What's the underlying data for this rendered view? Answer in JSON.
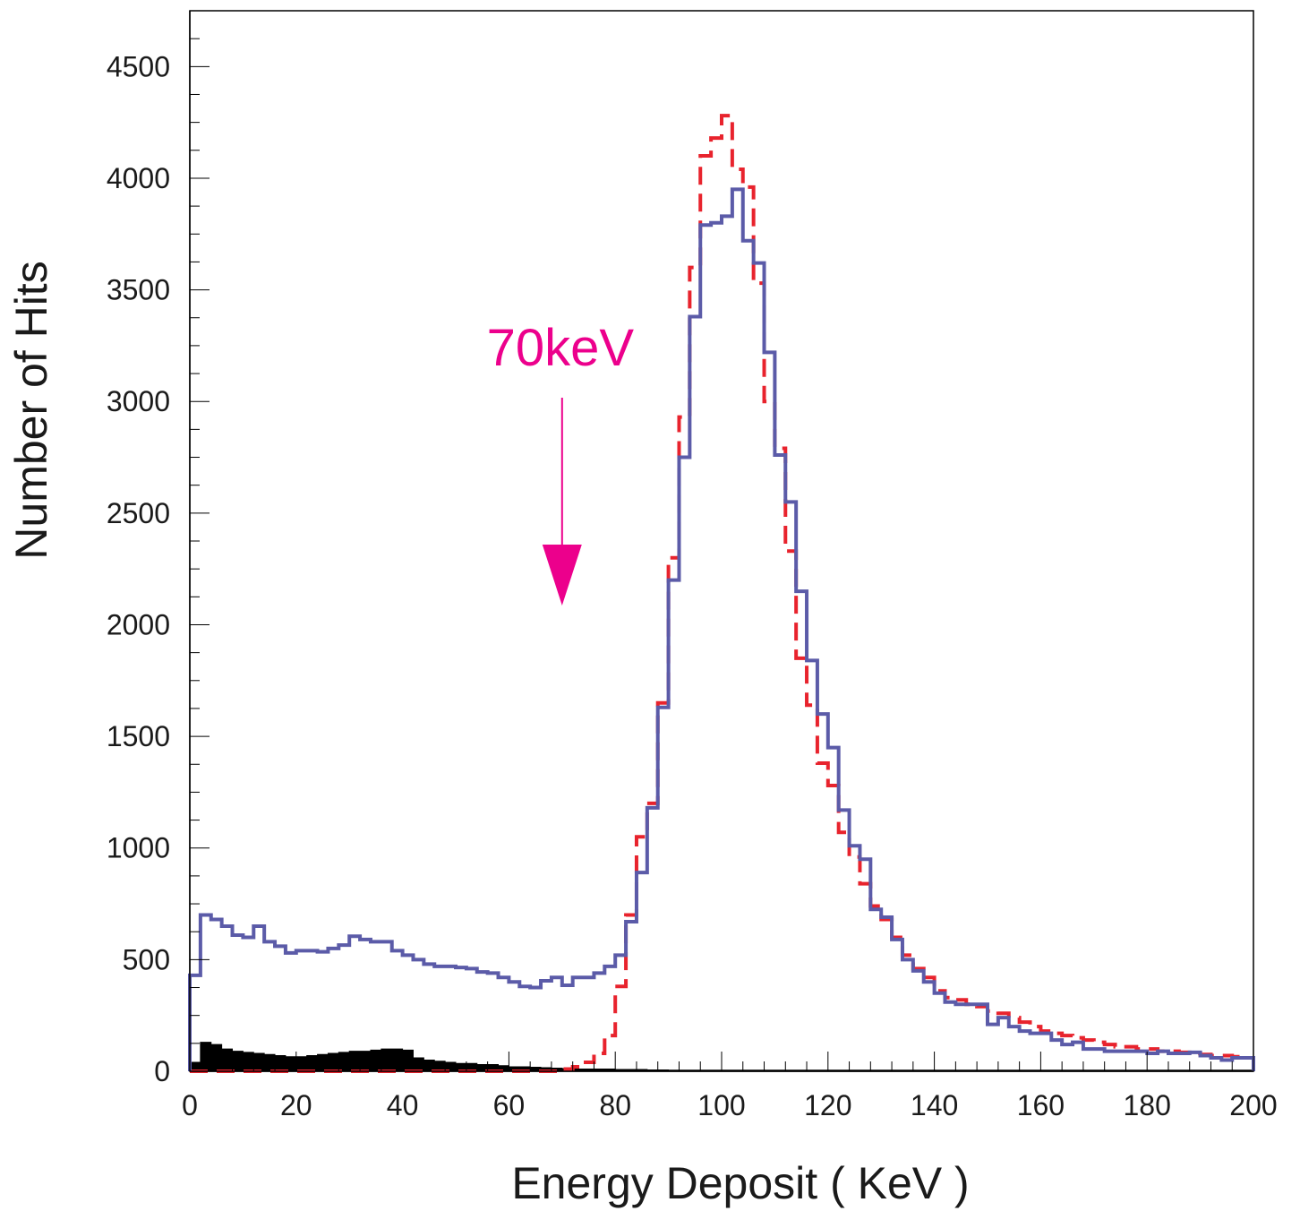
{
  "chart_data": {
    "type": "histogram",
    "xlabel": "Energy Deposit ( KeV )",
    "ylabel": "Number of Hits",
    "xlim": [
      0,
      200
    ],
    "ylim": [
      0,
      4750
    ],
    "x_ticks": [
      0,
      20,
      40,
      60,
      80,
      100,
      120,
      140,
      160,
      180,
      200
    ],
    "y_ticks": [
      0,
      500,
      1000,
      1500,
      2000,
      2500,
      3000,
      3500,
      4000,
      4500
    ],
    "grid": false,
    "bin_width": 2,
    "series": [
      {
        "style": "solid",
        "color": "#5b5ba8",
        "values": [
          430,
          700,
          680,
          650,
          610,
          600,
          650,
          580,
          560,
          530,
          540,
          540,
          535,
          550,
          565,
          605,
          590,
          580,
          580,
          540,
          520,
          500,
          480,
          470,
          470,
          465,
          460,
          445,
          440,
          420,
          400,
          380,
          375,
          405,
          420,
          385,
          420,
          420,
          440,
          470,
          520,
          670,
          890,
          1180,
          1630,
          2200,
          2750,
          3380,
          3790,
          3800,
          3830,
          3950,
          3720,
          3620,
          3220,
          2760,
          2550,
          2150,
          1840,
          1600,
          1450,
          1170,
          1010,
          950,
          725,
          690,
          590,
          500,
          450,
          400,
          350,
          310,
          300,
          300,
          300,
          210,
          240,
          200,
          180,
          170,
          170,
          140,
          120,
          130,
          100,
          100,
          90,
          90,
          90,
          90,
          80,
          90,
          80,
          80,
          85,
          70,
          60,
          50,
          60,
          60
        ]
      },
      {
        "style": "dashed",
        "color": "#e8232d",
        "values": [
          0,
          0,
          0,
          0,
          0,
          0,
          0,
          0,
          0,
          0,
          0,
          0,
          0,
          0,
          0,
          0,
          0,
          0,
          0,
          0,
          0,
          0,
          0,
          0,
          0,
          0,
          0,
          0,
          0,
          0,
          0,
          0,
          0,
          0,
          0,
          10,
          20,
          40,
          80,
          160,
          380,
          700,
          1050,
          1200,
          1650,
          2300,
          2930,
          3600,
          4100,
          4180,
          4280,
          4040,
          3960,
          3530,
          3000,
          2790,
          2330,
          1850,
          1640,
          1380,
          1280,
          1070,
          960,
          840,
          740,
          680,
          600,
          520,
          460,
          420,
          360,
          330,
          320,
          300,
          290,
          270,
          260,
          240,
          220,
          200,
          180,
          170,
          160,
          150,
          140,
          130,
          120,
          110,
          110,
          100,
          100,
          90,
          90,
          85,
          80,
          75,
          70,
          70,
          65,
          60
        ]
      },
      {
        "style": "filled",
        "color": "#000000",
        "values": [
          40,
          130,
          120,
          100,
          90,
          85,
          80,
          75,
          70,
          65,
          65,
          70,
          75,
          80,
          85,
          90,
          90,
          95,
          100,
          100,
          95,
          60,
          50,
          45,
          40,
          35,
          35,
          30,
          30,
          25,
          20,
          20,
          18,
          16,
          14,
          12,
          10,
          10,
          10,
          10,
          8,
          8,
          8,
          6,
          6,
          5,
          5,
          5,
          5,
          5,
          5,
          5,
          5,
          5,
          5,
          5,
          5,
          5,
          5,
          5,
          5,
          5,
          5,
          5,
          5,
          5,
          5,
          5,
          5,
          5,
          5,
          5,
          5,
          5,
          5,
          5,
          5,
          5,
          5,
          5,
          5,
          5,
          5,
          5,
          5,
          5,
          5,
          5,
          5,
          5,
          5,
          5,
          5,
          5,
          5,
          5,
          5,
          5,
          5,
          5
        ]
      }
    ],
    "annotations": [
      {
        "text": "70keV",
        "x": 70,
        "color": "#ec008c",
        "arrow": "down"
      }
    ]
  }
}
